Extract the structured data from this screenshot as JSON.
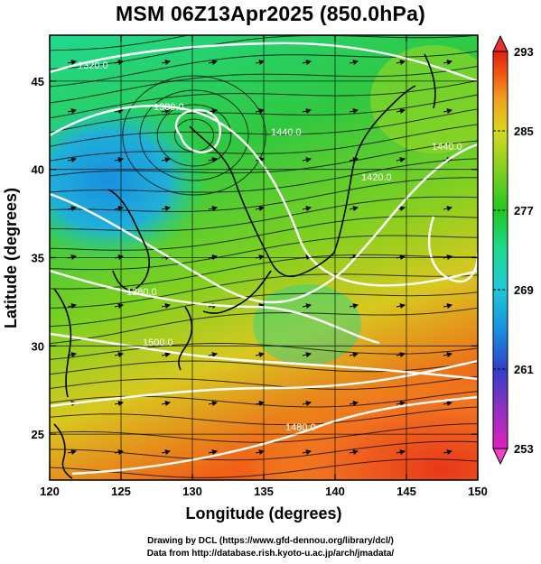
{
  "title": "MSM 06Z13Apr2025 (850.0hPa)",
  "chart_data": {
    "type": "heatmap",
    "xlabel": "Longitude (degrees)",
    "ylabel": "Latitude  (degrees)",
    "xlim": [
      120,
      150
    ],
    "ylim": [
      22.4,
      47.6
    ],
    "x_ticks": [
      "120",
      "125",
      "130",
      "135",
      "140",
      "145",
      "150"
    ],
    "y_ticks": [
      "25",
      "30",
      "35",
      "40",
      "45"
    ],
    "colorbar": {
      "min": 253,
      "max": 293,
      "tick_labels": [
        "293",
        "285",
        "277",
        "269",
        "261",
        "253"
      ],
      "colors": [
        "#e020c0",
        "#9030c0",
        "#3040c8",
        "#1890e0",
        "#20c8d8",
        "#20d890",
        "#20c820",
        "#80d020",
        "#d8d820",
        "#f0a020",
        "#f05010",
        "#e02010"
      ]
    },
    "contour_labels": [
      "1320.0",
      "1380.0",
      "1380.0",
      "1500.0",
      "1440.0",
      "1440.0",
      "1420.0",
      "1480.0"
    ],
    "contour_color": "#ffffff"
  },
  "footer": {
    "line1": "Drawing by DCL (https://www.gfd-dennou.org/library/dcl/)",
    "line2": "Data from http://database.rish.kyoto-u.ac.jp/arch/jmadata/"
  }
}
